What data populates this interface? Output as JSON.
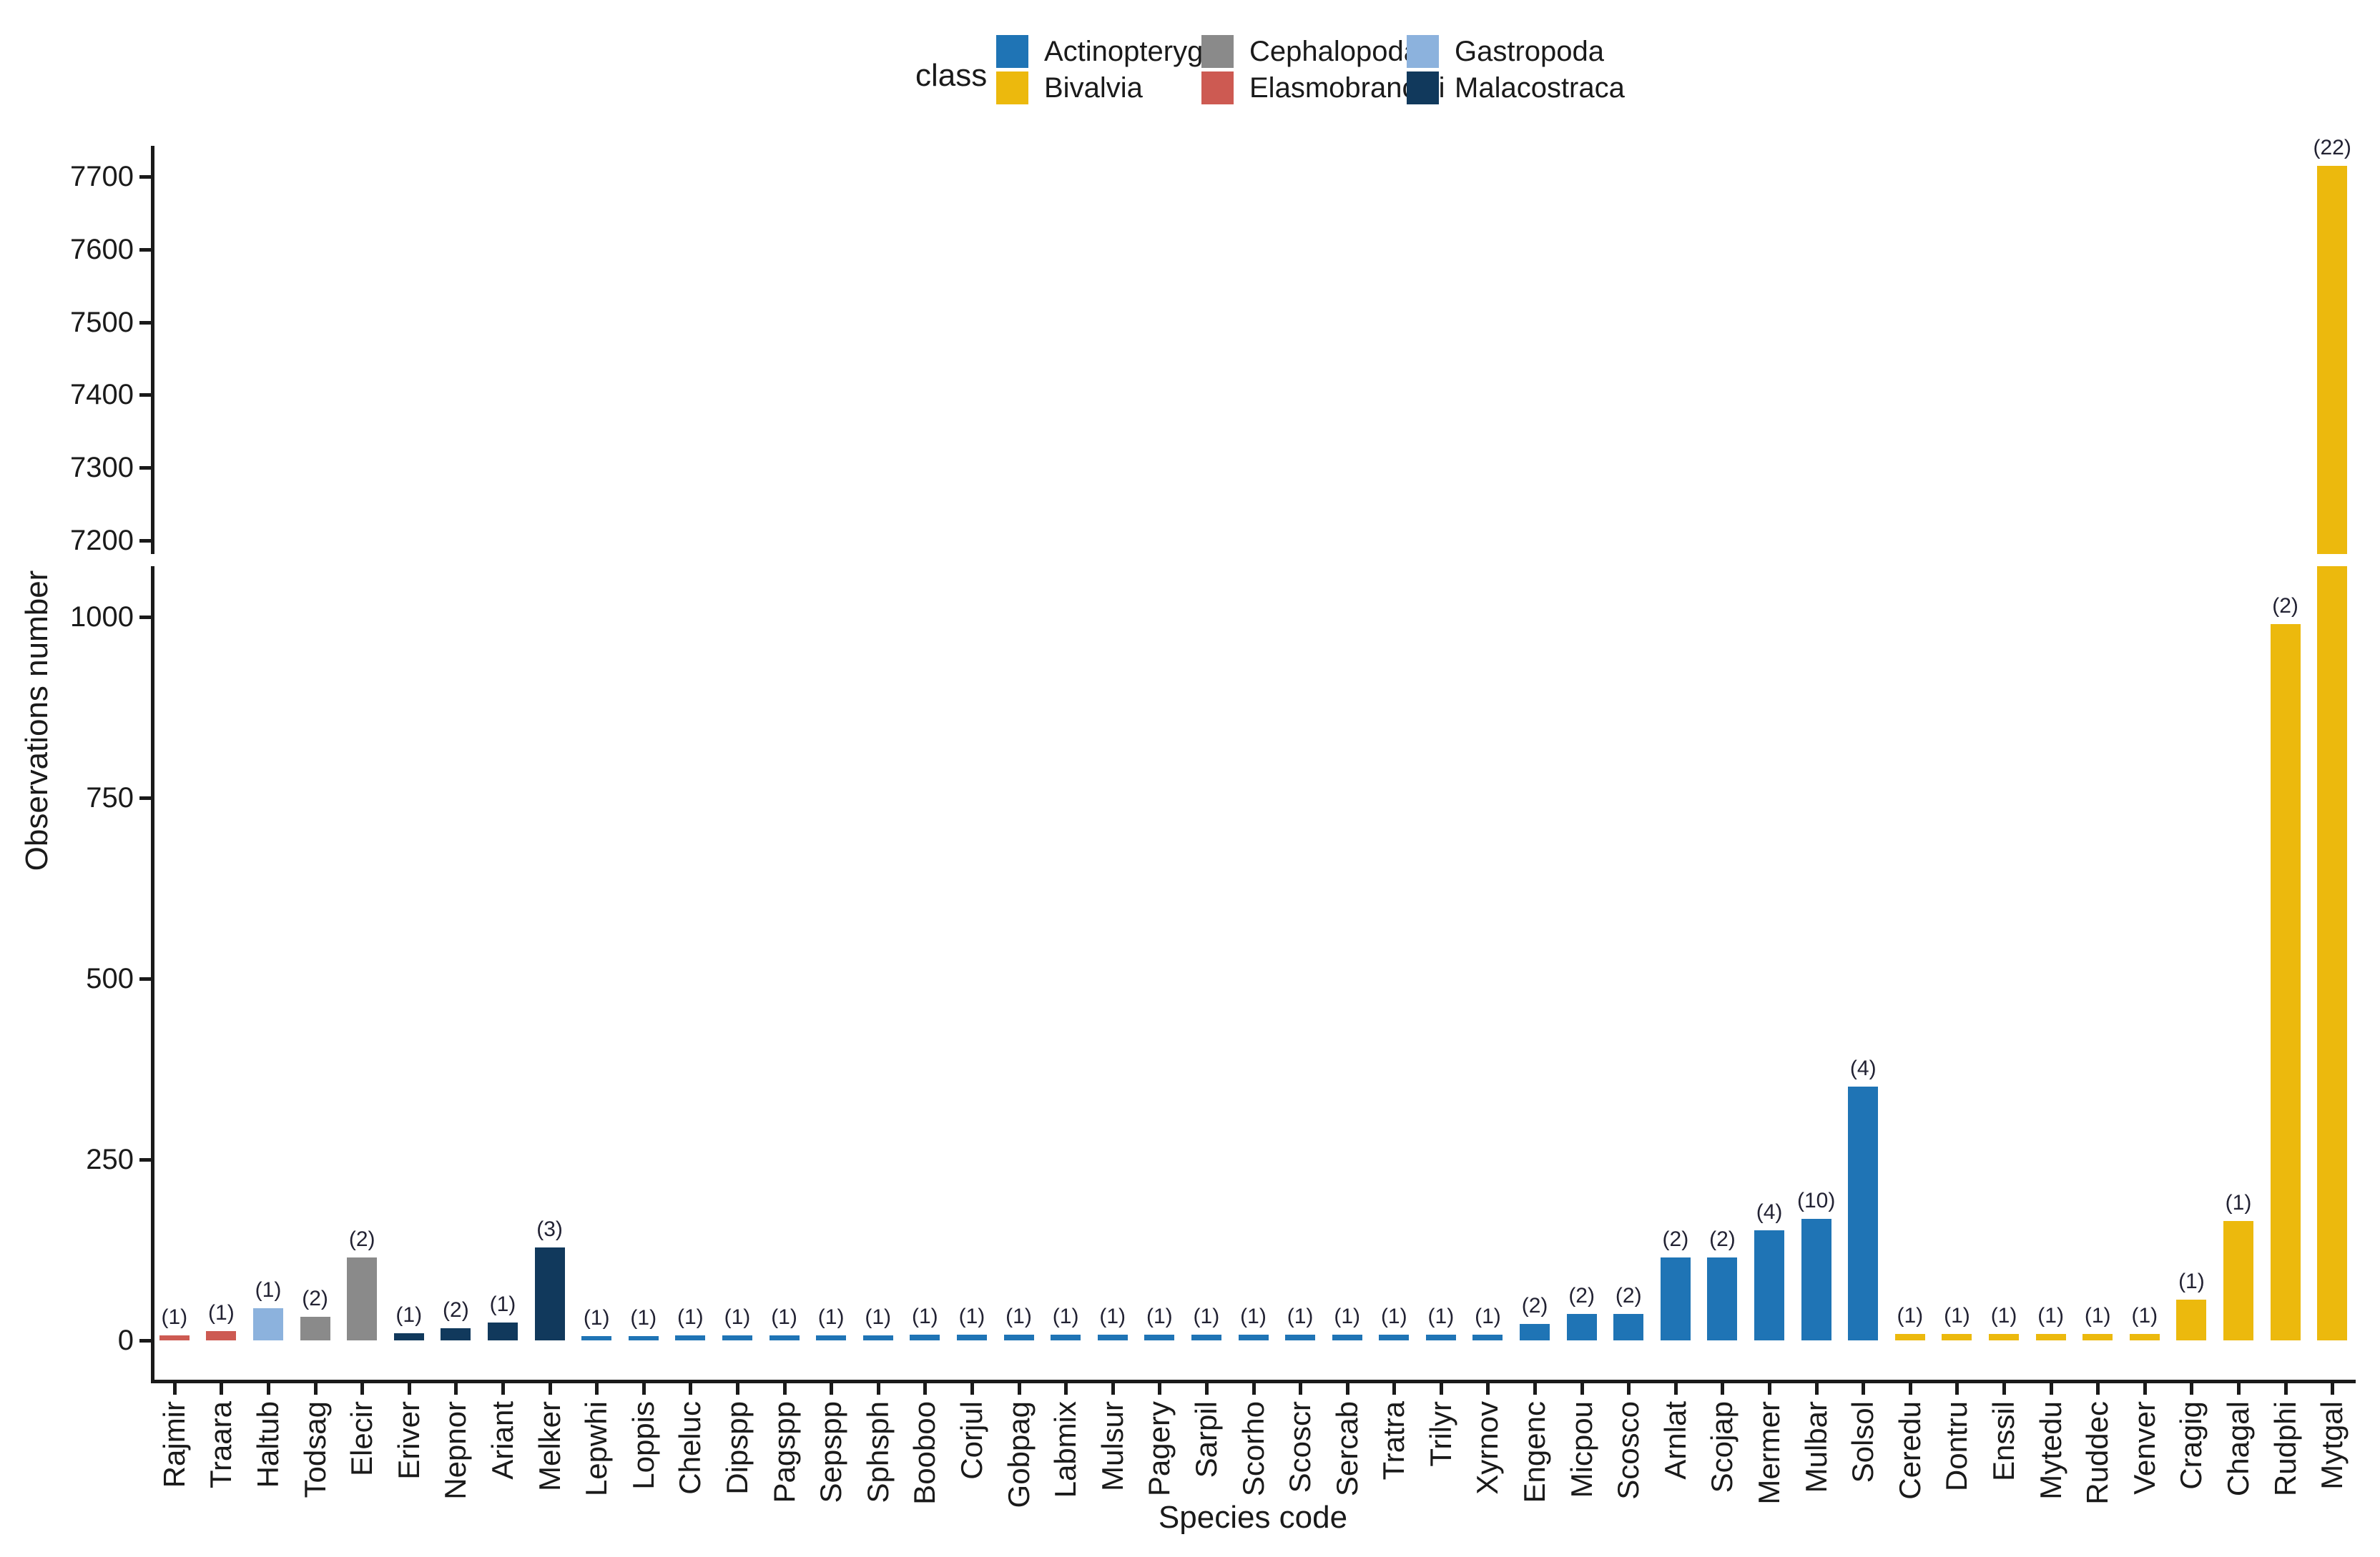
{
  "legend": {
    "title": "class",
    "items": [
      {
        "label": "Actinopterygii",
        "color": "#1f74b5"
      },
      {
        "label": "Bivalvia",
        "color": "#ecb90d"
      },
      {
        "label": "Cephalopoda",
        "color": "#8a8a8a"
      },
      {
        "label": "Elasmobranchii",
        "color": "#cd5a52"
      },
      {
        "label": "Gastropoda",
        "color": "#8cb2dd"
      },
      {
        "label": "Malacostraca",
        "color": "#11395c"
      }
    ]
  },
  "chart_data": {
    "type": "bar",
    "title": "",
    "xlabel": "Species code",
    "ylabel": "Observations number",
    "legend_title": "class",
    "legend_position": "top-center",
    "grid": false,
    "broken_y_axis": {
      "lower_ticks": [
        0,
        250,
        500,
        750,
        1000
      ],
      "upper_ticks": [
        7200,
        7300,
        7400,
        7500,
        7600,
        7700
      ],
      "lower_range": [
        0,
        1069
      ],
      "upper_range": [
        7180,
        7742
      ]
    },
    "class_colors": {
      "Actinopterygii": "#1f74b5",
      "Bivalvia": "#ecb90d",
      "Cephalopoda": "#8a8a8a",
      "Elasmobranchii": "#cd5a52",
      "Gastropoda": "#8cb2dd",
      "Malacostraca": "#11395c"
    },
    "categories": [
      "Rajmir",
      "Traara",
      "Haltub",
      "Todsag",
      "Elecir",
      "Eriver",
      "Nepnor",
      "Ariant",
      "Melker",
      "Lepwhi",
      "Loppis",
      "Cheluc",
      "Dipspp",
      "Pagspp",
      "Sepspp",
      "Sphsph",
      "Booboo",
      "Corjul",
      "Gobpag",
      "Labmix",
      "Mulsur",
      "Pagery",
      "Sarpil",
      "Scorho",
      "Scoscr",
      "Sercab",
      "Tratra",
      "Trilyr",
      "Xyrnov",
      "Engenc",
      "Micpou",
      "Scosco",
      "Arnlat",
      "Scojap",
      "Mermer",
      "Mulbar",
      "Solsol",
      "Ceredu",
      "Dontru",
      "Enssil",
      "Mytedu",
      "Ruddec",
      "Venver",
      "Cragig",
      "Chagal",
      "Rudphi",
      "Mytgal"
    ],
    "classes": [
      "Elasmobranchii",
      "Elasmobranchii",
      "Gastropoda",
      "Cephalopoda",
      "Cephalopoda",
      "Malacostraca",
      "Malacostraca",
      "Malacostraca",
      "Malacostraca",
      "Actinopterygii",
      "Actinopterygii",
      "Actinopterygii",
      "Actinopterygii",
      "Actinopterygii",
      "Actinopterygii",
      "Actinopterygii",
      "Actinopterygii",
      "Actinopterygii",
      "Actinopterygii",
      "Actinopterygii",
      "Actinopterygii",
      "Actinopterygii",
      "Actinopterygii",
      "Actinopterygii",
      "Actinopterygii",
      "Actinopterygii",
      "Actinopterygii",
      "Actinopterygii",
      "Actinopterygii",
      "Actinopterygii",
      "Actinopterygii",
      "Actinopterygii",
      "Actinopterygii",
      "Actinopterygii",
      "Actinopterygii",
      "Actinopterygii",
      "Actinopterygii",
      "Bivalvia",
      "Bivalvia",
      "Bivalvia",
      "Bivalvia",
      "Bivalvia",
      "Bivalvia",
      "Bivalvia",
      "Bivalvia",
      "Bivalvia",
      "Bivalvia"
    ],
    "values": [
      7,
      13,
      44,
      33,
      115,
      10,
      17,
      25,
      128,
      6,
      6,
      7,
      7,
      7,
      7,
      7,
      8,
      8,
      8,
      8,
      8,
      8,
      8,
      8,
      8,
      8,
      8,
      8,
      8,
      23,
      37,
      37,
      115,
      115,
      152,
      168,
      351,
      9,
      9,
      9,
      9,
      9,
      9,
      56,
      165,
      990,
      7715
    ],
    "count_labels": [
      "(1)",
      "(1)",
      "(1)",
      "(2)",
      "(2)",
      "(1)",
      "(2)",
      "(1)",
      "(3)",
      "(1)",
      "(1)",
      "(1)",
      "(1)",
      "(1)",
      "(1)",
      "(1)",
      "(1)",
      "(1)",
      "(1)",
      "(1)",
      "(1)",
      "(1)",
      "(1)",
      "(1)",
      "(1)",
      "(1)",
      "(1)",
      "(1)",
      "(1)",
      "(2)",
      "(2)",
      "(2)",
      "(2)",
      "(2)",
      "(4)",
      "(10)",
      "(4)",
      "(1)",
      "(1)",
      "(1)",
      "(1)",
      "(1)",
      "(1)",
      "(1)",
      "(1)",
      "(2)",
      "(22)"
    ]
  }
}
